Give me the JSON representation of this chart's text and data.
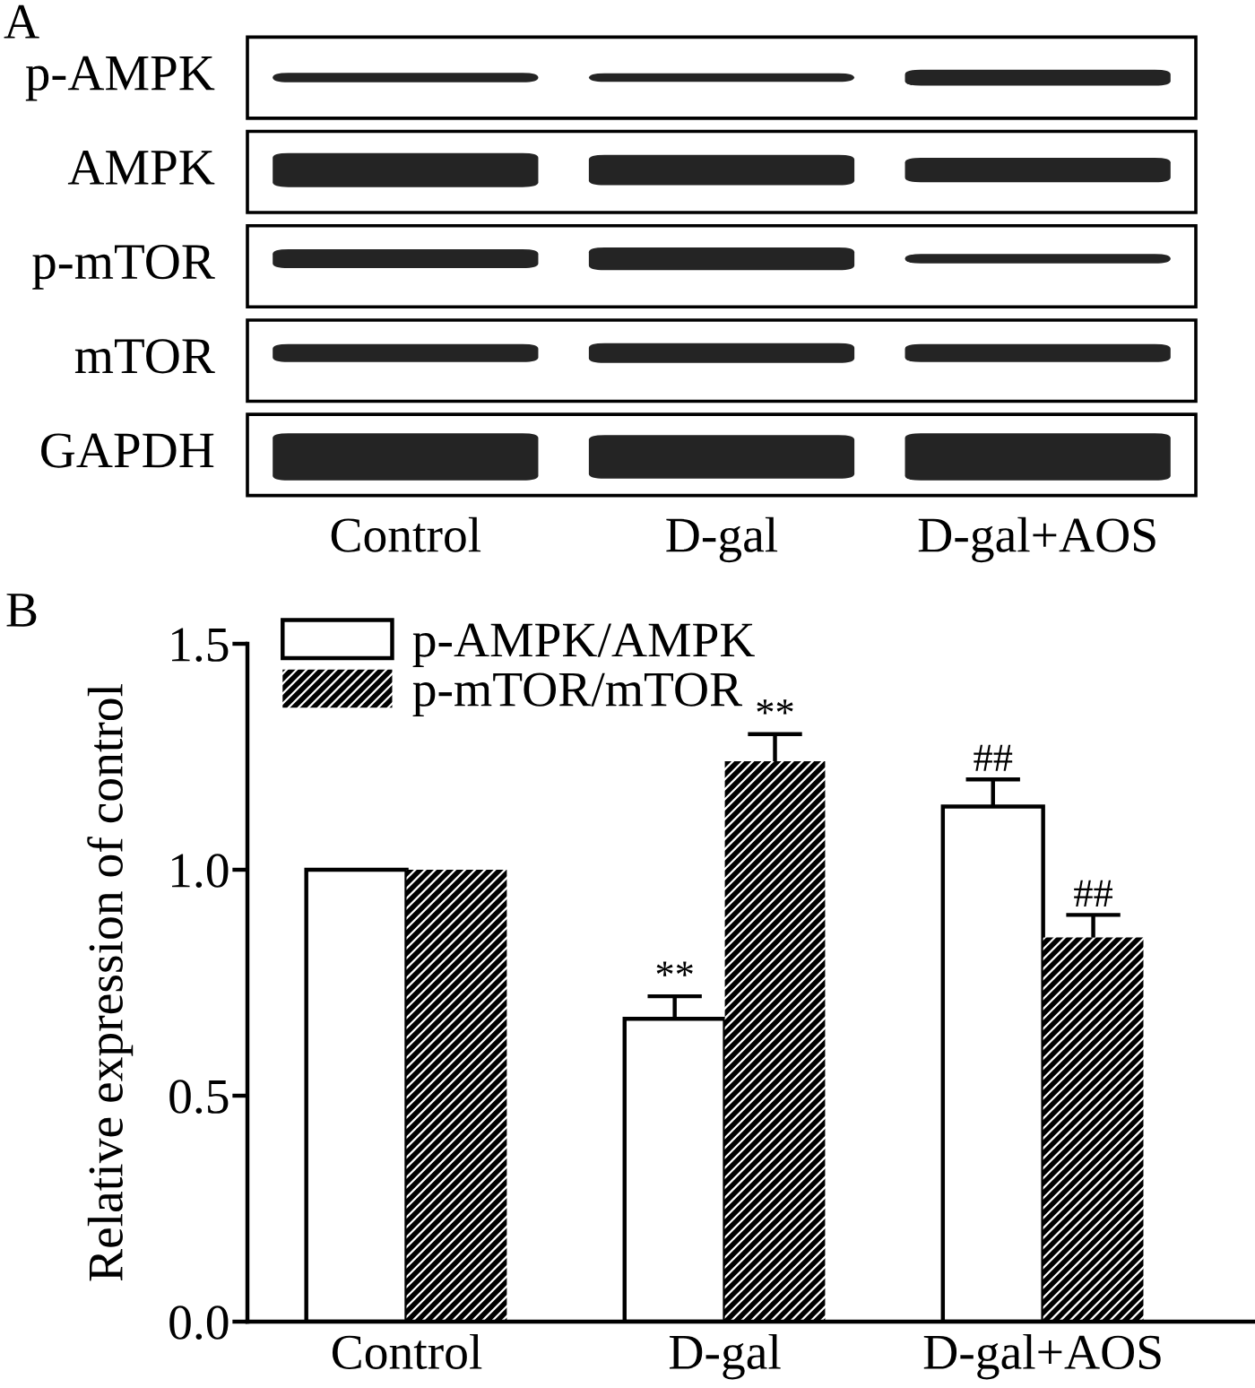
{
  "chart_data": [
    {
      "type": "other",
      "title": "A",
      "categories": [
        "Control",
        "D-gal",
        "D-gal+AOS"
      ],
      "y_categories": [
        "p-AMPK",
        "AMPK",
        "p-mTOR",
        "mTOR",
        "GAPDH"
      ]
    },
    {
      "type": "bar",
      "title": "B",
      "categories": [
        "Control",
        "D-gal",
        "D-gal+AOS"
      ],
      "ylabel": "Relative expression of control",
      "ylim": [
        0,
        1.5
      ],
      "yticks": [
        {
          "value": 0,
          "label": "0.0"
        },
        0.5,
        {
          "value": 1,
          "label": "1.0"
        },
        1.5
      ],
      "series": [
        {
          "name": "p-AMPK/AMPK",
          "color": "#ffffff",
          "values": [
            1.0,
            0.67,
            1.14
          ],
          "errors": [
            null,
            [
              0.67,
              0.72
            ],
            [
              1.14,
              1.2
            ]
          ]
        },
        {
          "name": "p-mTOR/mTOR",
          "color": "#000000",
          "values": [
            1.0,
            1.24,
            0.85
          ],
          "errors": [
            null,
            [
              1.24,
              1.3
            ],
            [
              0.85,
              0.9
            ]
          ]
        }
      ],
      "legend": "top left",
      "annotations": [
        {
          "text": "**",
          "x": "D-gal",
          "y": 0.67
        },
        {
          "text": "**",
          "x": "D-gal",
          "y": 1.24
        },
        {
          "text": "##",
          "x": "D-gal+AOS",
          "y": 1.14
        },
        {
          "text": "##",
          "x": "D-gal+AOS",
          "y": 0.85
        }
      ]
    }
  ]
}
